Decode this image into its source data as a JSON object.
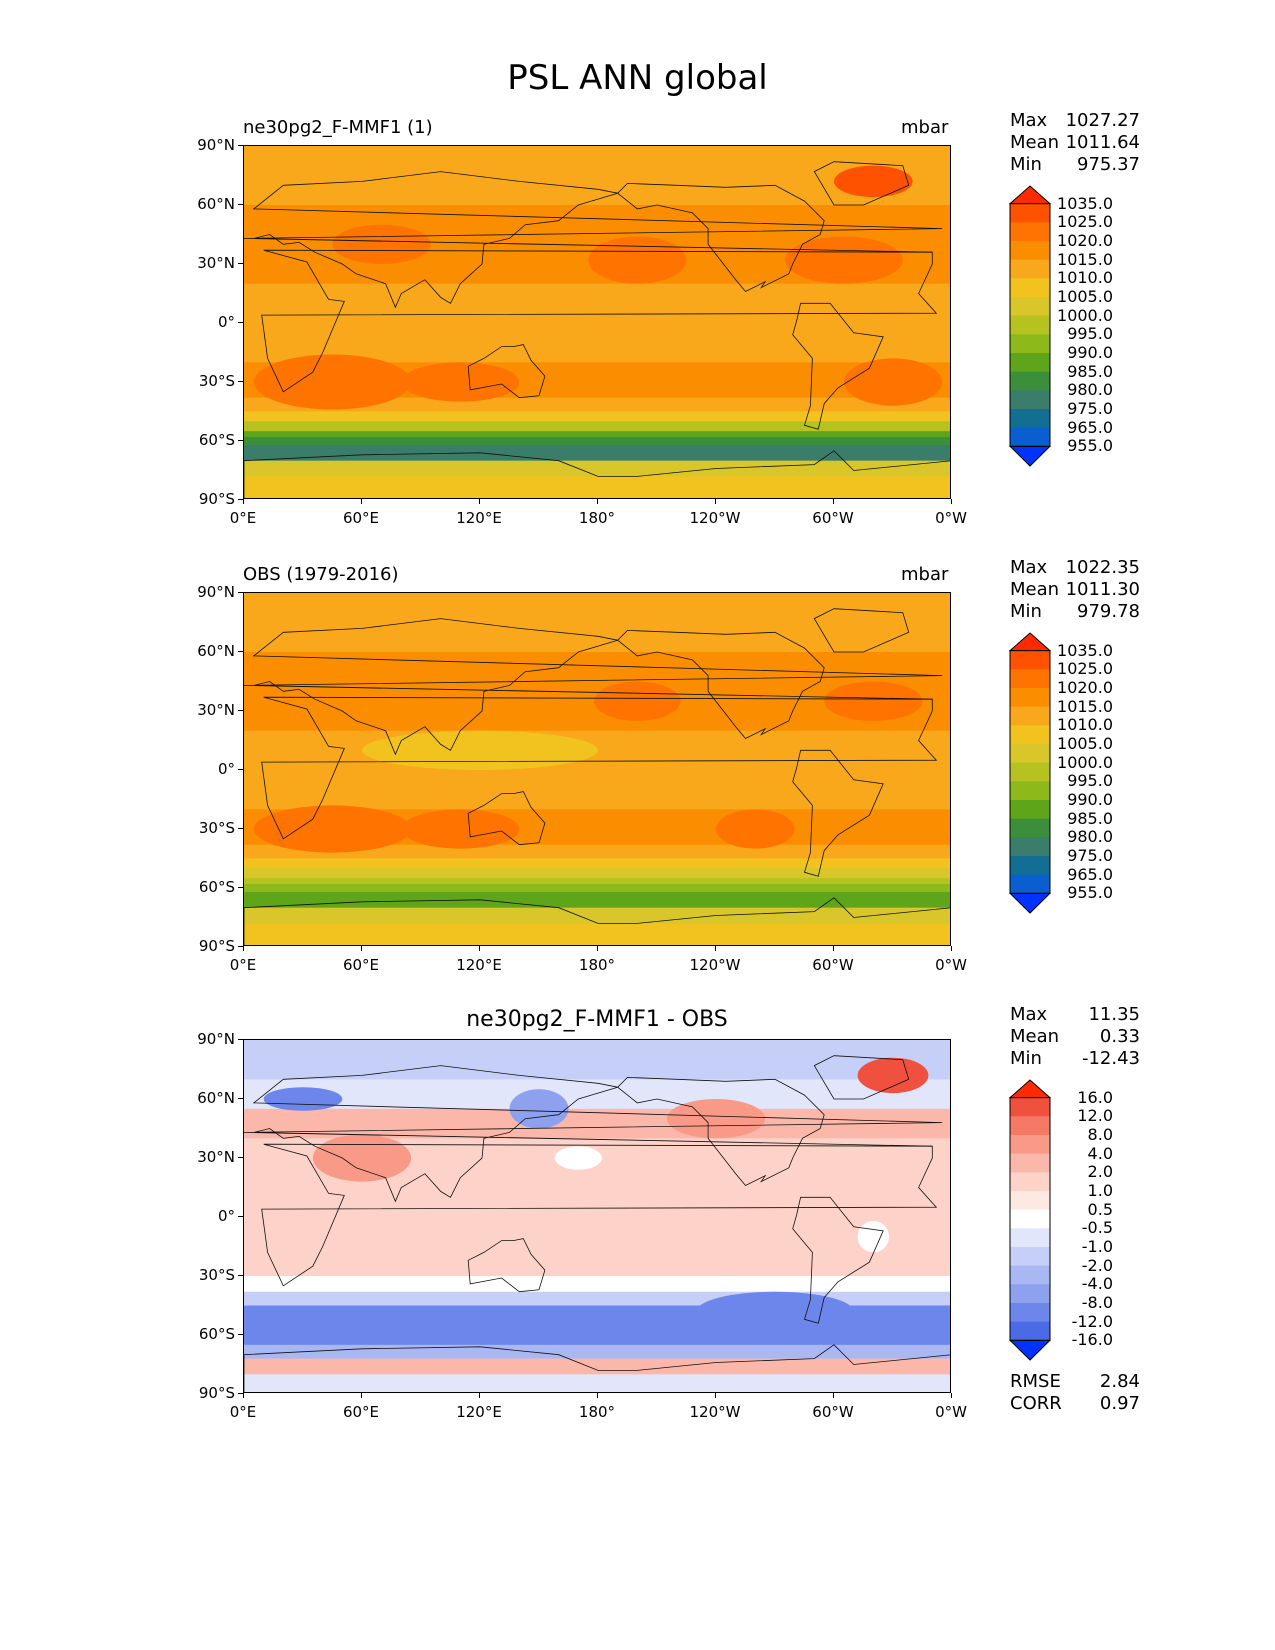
{
  "title": "PSL ANN global",
  "panels": [
    {
      "left_label": "ne30pg2_F-MMF1 (1)",
      "right_label": "mbar",
      "center_label": "",
      "stats": [
        {
          "k": "Max",
          "v": "1027.27"
        },
        {
          "k": "Mean",
          "v": "1011.64"
        },
        {
          "k": "Min",
          "v": "975.37"
        }
      ],
      "bottom_stats": [],
      "colorbar": {
        "labels": [
          "1035.0",
          "1025.0",
          "1020.0",
          "1015.0",
          "1010.0",
          "1005.0",
          "1000.0",
          "995.0",
          "990.0",
          "985.0",
          "980.0",
          "975.0",
          "965.0",
          "955.0"
        ],
        "colors": [
          "#ff2a00",
          "#ff5200",
          "#ff7300",
          "#fb8e00",
          "#f9a81b",
          "#f2c31e",
          "#d8c62b",
          "#b6c21f",
          "#8dba1a",
          "#5ea51a",
          "#3c8f3a",
          "#3a7d6a",
          "#126e93",
          "#0a5fd0",
          "#0033ff"
        ]
      }
    },
    {
      "left_label": "OBS (1979-2016)",
      "right_label": "mbar",
      "center_label": "",
      "stats": [
        {
          "k": "Max",
          "v": "1022.35"
        },
        {
          "k": "Mean",
          "v": "1011.30"
        },
        {
          "k": "Min",
          "v": "979.78"
        }
      ],
      "bottom_stats": [],
      "colorbar": {
        "labels": [
          "1035.0",
          "1025.0",
          "1020.0",
          "1015.0",
          "1010.0",
          "1005.0",
          "1000.0",
          "995.0",
          "990.0",
          "985.0",
          "980.0",
          "975.0",
          "965.0",
          "955.0"
        ],
        "colors": [
          "#ff2a00",
          "#ff5200",
          "#ff7300",
          "#fb8e00",
          "#f9a81b",
          "#f2c31e",
          "#d8c62b",
          "#b6c21f",
          "#8dba1a",
          "#5ea51a",
          "#3c8f3a",
          "#3a7d6a",
          "#126e93",
          "#0a5fd0",
          "#0033ff"
        ]
      }
    },
    {
      "left_label": "",
      "right_label": "",
      "center_label": "ne30pg2_F-MMF1 - OBS",
      "stats": [
        {
          "k": "Max",
          "v": "11.35"
        },
        {
          "k": "Mean",
          "v": "0.33"
        },
        {
          "k": "Min",
          "v": "-12.43"
        }
      ],
      "bottom_stats": [
        {
          "k": "RMSE",
          "v": "2.84"
        },
        {
          "k": "CORR",
          "v": "0.97"
        }
      ],
      "colorbar": {
        "labels": [
          "16.0",
          "12.0",
          "8.0",
          "4.0",
          "2.0",
          "1.0",
          "0.5",
          "-0.5",
          "-1.0",
          "-2.0",
          "-4.0",
          "-8.0",
          "-12.0",
          "-16.0"
        ],
        "colors": [
          "#ff2a00",
          "#f0503e",
          "#f57a66",
          "#f99a88",
          "#fbb8aa",
          "#fdd2c8",
          "#fde8e2",
          "#ffffff",
          "#e2e6fb",
          "#c6cff7",
          "#a9b7f3",
          "#8ea1ef",
          "#6c86eb",
          "#4a6ae6",
          "#0033ff"
        ]
      }
    }
  ],
  "lat_ticks": [
    "90°N",
    "60°N",
    "30°N",
    "0°",
    "30°S",
    "60°S",
    "90°S"
  ],
  "lon_ticks": [
    "0°E",
    "60°E",
    "120°E",
    "180°",
    "120°W",
    "60°W",
    "0°W"
  ],
  "chart_data": [
    {
      "type": "heatmap",
      "title": "ne30pg2_F-MMF1 (1)",
      "units": "mbar",
      "variable": "PSL",
      "season": "ANN",
      "projection": "PlateCarree (longitude 0°E to 0°W, latitude 90°S to 90°N)",
      "stats": {
        "max": 1027.27,
        "mean": 1011.64,
        "min": 975.37
      },
      "contour_levels": [
        955.0,
        965.0,
        975.0,
        980.0,
        985.0,
        990.0,
        995.0,
        1000.0,
        1005.0,
        1010.0,
        1015.0,
        1020.0,
        1025.0,
        1035.0
      ],
      "xlim": [
        0,
        360
      ],
      "ylim": [
        -90,
        90
      ]
    },
    {
      "type": "heatmap",
      "title": "OBS (1979-2016)",
      "units": "mbar",
      "variable": "PSL",
      "season": "ANN",
      "stats": {
        "max": 1022.35,
        "mean": 1011.3,
        "min": 979.78
      },
      "contour_levels": [
        955.0,
        965.0,
        975.0,
        980.0,
        985.0,
        990.0,
        995.0,
        1000.0,
        1005.0,
        1010.0,
        1015.0,
        1020.0,
        1025.0,
        1035.0
      ],
      "xlim": [
        0,
        360
      ],
      "ylim": [
        -90,
        90
      ]
    },
    {
      "type": "heatmap",
      "title": "ne30pg2_F-MMF1 - OBS",
      "variable": "PSL difference",
      "season": "ANN",
      "stats": {
        "max": 11.35,
        "mean": 0.33,
        "min": -12.43,
        "rmse": 2.84,
        "corr": 0.97
      },
      "contour_levels": [
        -16.0,
        -12.0,
        -8.0,
        -4.0,
        -2.0,
        -1.0,
        -0.5,
        0.5,
        1.0,
        2.0,
        4.0,
        8.0,
        12.0,
        16.0
      ],
      "xlim": [
        0,
        360
      ],
      "ylim": [
        -90,
        90
      ]
    }
  ]
}
